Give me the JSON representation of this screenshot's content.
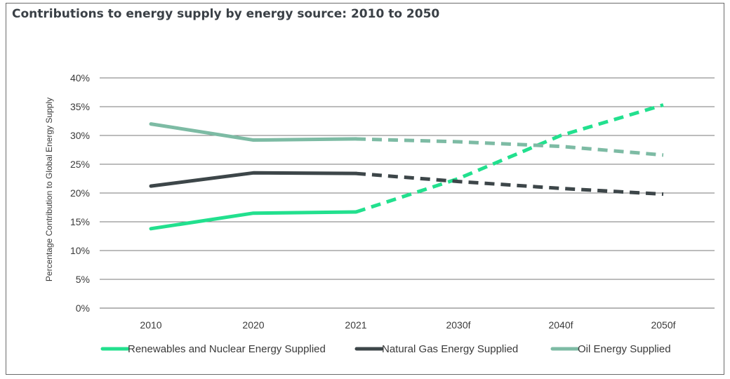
{
  "chart_data": {
    "type": "line",
    "title": "Contributions to energy supply by energy source: 2010 to 2050",
    "ylabel": "Percentage Contribution to Global Energy Supply",
    "xlabel": "",
    "categories": [
      "2010",
      "2020",
      "2021",
      "2030f",
      "2040f",
      "2050f"
    ],
    "yticks": [
      "0%",
      "5%",
      "10%",
      "15%",
      "20%",
      "25%",
      "30%",
      "35%",
      "40%"
    ],
    "ylim": [
      0,
      40
    ],
    "grid": true,
    "legend_position": "bottom",
    "forecast_dashed_from": "2021",
    "series": [
      {
        "name": "Renewables and Nuclear Energy Supplied",
        "color": "#22e08e",
        "values": [
          13.8,
          16.5,
          16.7,
          22.5,
          30.0,
          35.3
        ]
      },
      {
        "name": "Natural Gas Energy Supplied",
        "color": "#3d4649",
        "values": [
          21.2,
          23.5,
          23.4,
          22.0,
          20.8,
          19.8
        ]
      },
      {
        "name": "Oil Energy Supplied",
        "color": "#7dbba4",
        "values": [
          32.0,
          29.2,
          29.4,
          28.9,
          28.1,
          26.6
        ]
      }
    ]
  }
}
